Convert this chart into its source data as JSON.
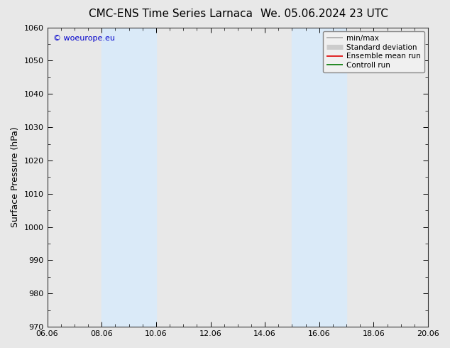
{
  "title_left": "CMC-ENS Time Series Larnaca",
  "title_right": "We. 05.06.2024 23 UTC",
  "ylabel": "Surface Pressure (hPa)",
  "ylim": [
    970,
    1060
  ],
  "yticks": [
    970,
    980,
    990,
    1000,
    1010,
    1020,
    1030,
    1040,
    1050,
    1060
  ],
  "xtick_labels": [
    "06.06",
    "08.06",
    "10.06",
    "12.06",
    "14.06",
    "16.06",
    "18.06",
    "20.06"
  ],
  "xtick_positions": [
    0,
    2,
    4,
    6,
    8,
    10,
    12,
    14
  ],
  "xlim": [
    0,
    14
  ],
  "shaded_regions": [
    {
      "xmin": 2,
      "xmax": 4,
      "color": "#daeaf8"
    },
    {
      "xmin": 9,
      "xmax": 11,
      "color": "#daeaf8"
    }
  ],
  "copyright_text": "© woeurope.eu",
  "legend_items": [
    {
      "label": "min/max",
      "color": "#aaaaaa",
      "lw": 1.2
    },
    {
      "label": "Standard deviation",
      "color": "#cccccc",
      "lw": 5
    },
    {
      "label": "Ensemble mean run",
      "color": "#dd0000",
      "lw": 1.2
    },
    {
      "label": "Controll run",
      "color": "#007700",
      "lw": 1.2
    }
  ],
  "bg_color": "#e8e8e8",
  "plot_bg_color": "#e8e8e8",
  "title_fontsize": 11,
  "ylabel_fontsize": 9,
  "tick_fontsize": 8,
  "copyright_color": "#0000cc",
  "legend_fontsize": 7.5
}
